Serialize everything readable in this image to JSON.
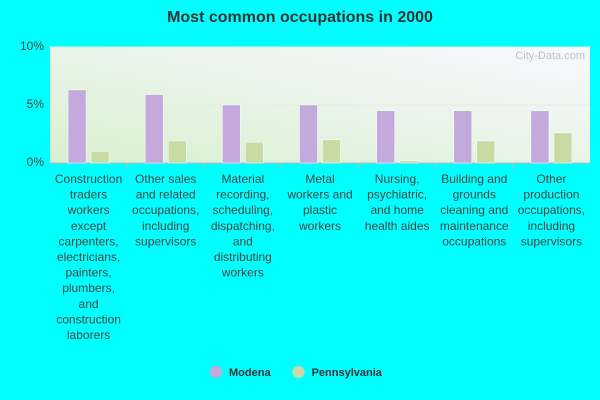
{
  "chart_data": {
    "type": "bar",
    "title": "Most common occupations in 2000",
    "watermark": "City-Data.com",
    "categories": [
      "Construction traders workers except carpenters, electricians, painters, plumbers, and construction laborers",
      "Other sales and related occupations, including supervisors",
      "Material recording, scheduling, dispatching, and distributing workers",
      "Metal workers and plastic workers",
      "Nursing, psychiatric, and home health aides",
      "Building and grounds cleaning and maintenance occupations",
      "Other production occupations, including supervisors"
    ],
    "series": [
      {
        "name": "Modena",
        "color": "#c3a9dc",
        "values": [
          6.3,
          5.9,
          5.0,
          5.0,
          4.5,
          4.5,
          4.5
        ]
      },
      {
        "name": "Pennsylvania",
        "color": "#c9dba5",
        "values": [
          1.0,
          1.9,
          1.8,
          2.0,
          0.2,
          1.9,
          2.6
        ]
      }
    ],
    "ylim": [
      0,
      10
    ],
    "yticks": [
      {
        "value": 0,
        "label": "0%"
      },
      {
        "value": 5,
        "label": "5%"
      },
      {
        "value": 10,
        "label": "10%"
      }
    ],
    "grid": true,
    "legend": "bottom"
  }
}
